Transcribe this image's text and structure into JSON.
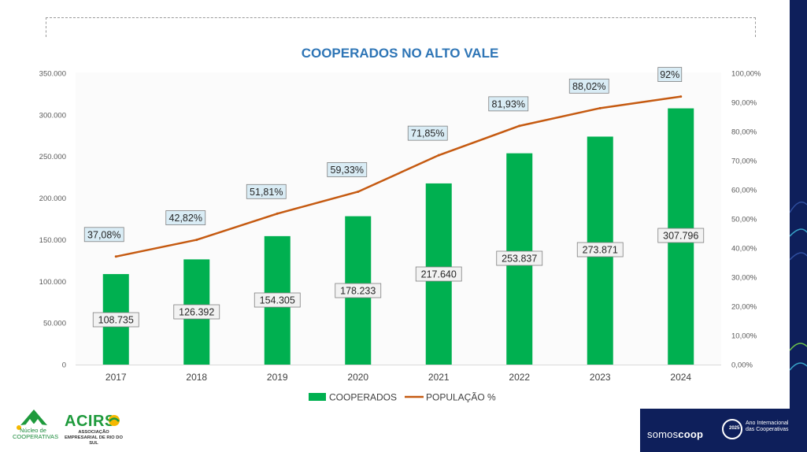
{
  "chart_data": {
    "type": "bar+line",
    "title": "COOPERADOS NO ALTO VALE",
    "categories": [
      "2017",
      "2018",
      "2019",
      "2020",
      "2021",
      "2022",
      "2023",
      "2024"
    ],
    "series": [
      {
        "name": "COOPERADOS",
        "type": "bar",
        "axis": "left",
        "color": "#00b050",
        "values": [
          108735,
          126392,
          154305,
          178233,
          217640,
          253837,
          273871,
          307796
        ],
        "labels": [
          "108.735",
          "126.392",
          "154.305",
          "178.233",
          "217.640",
          "253.837",
          "273.871",
          "307.796"
        ]
      },
      {
        "name": "POPULAÇÃO %",
        "type": "line",
        "axis": "right",
        "color": "#c55a11",
        "values": [
          37.08,
          42.82,
          51.81,
          59.33,
          71.85,
          81.93,
          88.02,
          92
        ],
        "labels": [
          "37,08%",
          "42,82%",
          "51,81%",
          "59,33%",
          "71,85%",
          "81,93%",
          "88,02%",
          "92%"
        ]
      }
    ],
    "y_left": {
      "range": [
        0,
        350000
      ],
      "ticks": [
        "0",
        "50.000",
        "100.000",
        "150.000",
        "200.000",
        "250.000",
        "300.000",
        "350.000"
      ]
    },
    "y_right": {
      "range": [
        0,
        100
      ],
      "ticks": [
        "0,00%",
        "10,00%",
        "20,00%",
        "30,00%",
        "40,00%",
        "50,00%",
        "60,00%",
        "70,00%",
        "80,00%",
        "90,00%",
        "100,00%"
      ]
    },
    "legend_position": "bottom",
    "grid": false
  },
  "logos": {
    "nucleo": "Núcleo de COOPERATIVAS",
    "acirs_name": "ACIRS",
    "acirs_sub": "ASSOCIAÇÃO EMPRESARIAL DE RIO DO SUL",
    "somos_a": "somos",
    "somos_b": "coop",
    "aic_year": "2025",
    "aic_text": "Ano Internacional das Cooperativas"
  },
  "colors": {
    "title": "#2e75b6",
    "bar": "#00b050",
    "line": "#c55a11",
    "label_box": "#d9ecf5",
    "strip": "#0e1f5b"
  }
}
